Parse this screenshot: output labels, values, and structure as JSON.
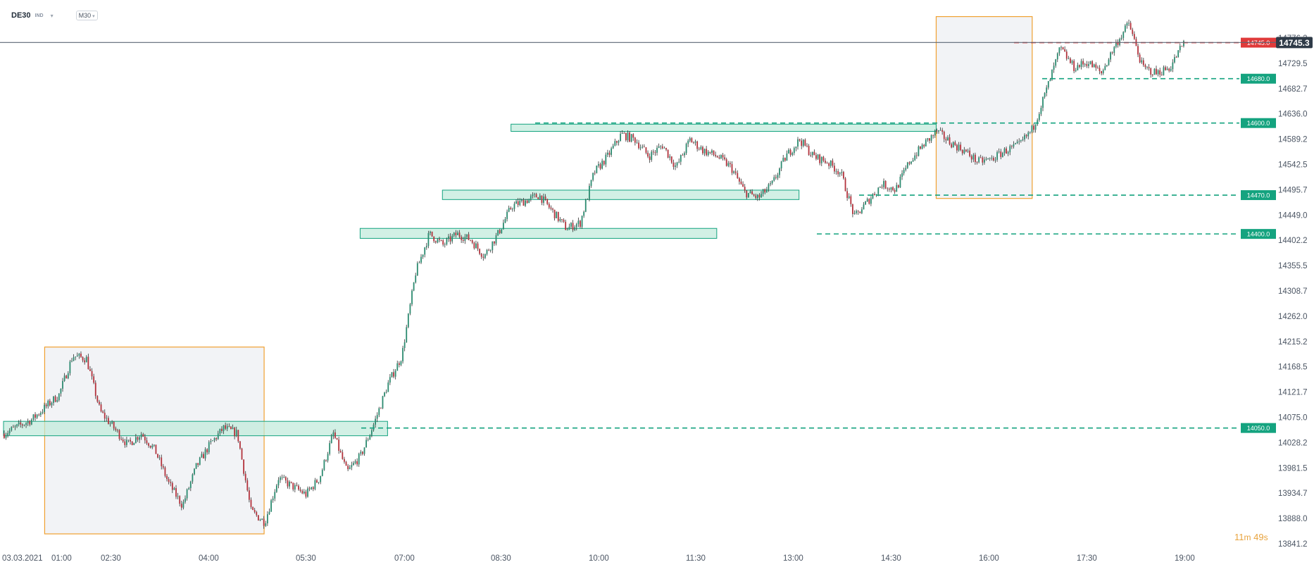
{
  "toolbar": {
    "symbol": "DE30",
    "market": "IND",
    "timeframe": "M30",
    "market_caret_icon": "chevron-down-icon",
    "timeframe_caret_icon": "chevron-down-icon"
  },
  "countdown": {
    "minutes": "11",
    "m_unit": "m",
    "seconds": "49",
    "s_unit": "s"
  },
  "colors": {
    "up_candle": "#2b8a6f",
    "down_candle": "#b3323c",
    "wick": "#2d2d2d",
    "level_green": "#14a37f",
    "level_red": "#e03a3a",
    "box_orange": "#f0a030",
    "box_fill": "#f2f3f6",
    "zone_fill": "#bfe9da",
    "axis_text": "#4b5563",
    "price_line": "#5b6675",
    "current_badge": "#2f3b48"
  },
  "chart_data": {
    "type": "candlestick",
    "y_ticks": [
      "14776.2",
      "14729.5",
      "14682.7",
      "14636.0",
      "14589.2",
      "14542.5",
      "14495.7",
      "14449.0",
      "14402.2",
      "14355.5",
      "14308.7",
      "14262.0",
      "14215.2",
      "14168.5",
      "14121.7",
      "14075.0",
      "14028.2",
      "13981.5",
      "13934.7",
      "13888.0",
      "13841.2"
    ],
    "ylim": [
      13841.2,
      14776.2
    ],
    "x_ticks": [
      "03.03.2021",
      "01:00",
      "02:30",
      "04:00",
      "05:30",
      "07:00",
      "08:30",
      "10:00",
      "11:30",
      "13:00",
      "14:30",
      "16:00",
      "17:30",
      "19:00"
    ],
    "current_price": {
      "value": 14745.3,
      "label": "14745.3"
    },
    "levels": [
      {
        "value": 14745.0,
        "label": "14745.0",
        "color": "red"
      },
      {
        "value": 14680.0,
        "label": "14680.0",
        "color": "green"
      },
      {
        "value": 14600.0,
        "label": "14600.0",
        "color": "green"
      },
      {
        "value": 14470.0,
        "label": "14470.0",
        "color": "green"
      },
      {
        "value": 14400.0,
        "label": "14400.0",
        "color": "green"
      },
      {
        "value": 14050.0,
        "label": "14050.0",
        "color": "green"
      }
    ],
    "zones": [
      {
        "price_low": 14036,
        "price_high": 14062,
        "from": "23:30",
        "to": "06:30"
      },
      {
        "price_low": 14392,
        "price_high": 14410,
        "from": "06:00",
        "to": "12:30"
      },
      {
        "price_low": 14462,
        "price_high": 14479,
        "from": "07:30",
        "to": "14:00"
      },
      {
        "price_low": 14585,
        "price_high": 14598,
        "from": "08:45",
        "to": "16:30"
      }
    ],
    "range_boxes": [
      {
        "from": "00:15",
        "to": "04:15",
        "high": 14196,
        "low": 13859
      },
      {
        "from": "16:30",
        "to": "18:15",
        "high": 14792,
        "low": 14464
      }
    ],
    "close_path": [
      [
        "23:30",
        14040
      ],
      [
        "00:00",
        14065
      ],
      [
        "00:30",
        14110
      ],
      [
        "00:45",
        14180
      ],
      [
        "01:00",
        14175
      ],
      [
        "01:15",
        14080
      ],
      [
        "01:30",
        14050
      ],
      [
        "01:45",
        14020
      ],
      [
        "02:00",
        14040
      ],
      [
        "02:15",
        14010
      ],
      [
        "02:30",
        13950
      ],
      [
        "02:45",
        13910
      ],
      [
        "03:00",
        13980
      ],
      [
        "03:15",
        14020
      ],
      [
        "03:30",
        14050
      ],
      [
        "03:45",
        14040
      ],
      [
        "04:00",
        13900
      ],
      [
        "04:15",
        13880
      ],
      [
        "04:30",
        13960
      ],
      [
        "05:00",
        13930
      ],
      [
        "05:15",
        13960
      ],
      [
        "05:30",
        14040
      ],
      [
        "05:45",
        13970
      ],
      [
        "06:00",
        14000
      ],
      [
        "06:15",
        14060
      ],
      [
        "06:30",
        14130
      ],
      [
        "06:45",
        14180
      ],
      [
        "07:00",
        14330
      ],
      [
        "07:15",
        14400
      ],
      [
        "07:30",
        14380
      ],
      [
        "07:45",
        14400
      ],
      [
        "08:00",
        14390
      ],
      [
        "08:15",
        14360
      ],
      [
        "08:30",
        14400
      ],
      [
        "08:45",
        14450
      ],
      [
        "09:00",
        14460
      ],
      [
        "09:15",
        14470
      ],
      [
        "09:30",
        14440
      ],
      [
        "09:45",
        14410
      ],
      [
        "10:00",
        14420
      ],
      [
        "10:15",
        14510
      ],
      [
        "10:30",
        14540
      ],
      [
        "10:45",
        14580
      ],
      [
        "11:00",
        14570
      ],
      [
        "11:15",
        14540
      ],
      [
        "11:30",
        14560
      ],
      [
        "11:45",
        14520
      ],
      [
        "12:00",
        14570
      ],
      [
        "12:15",
        14550
      ],
      [
        "12:30",
        14540
      ],
      [
        "12:45",
        14520
      ],
      [
        "13:00",
        14475
      ],
      [
        "13:15",
        14465
      ],
      [
        "13:30",
        14490
      ],
      [
        "13:45",
        14540
      ],
      [
        "14:00",
        14570
      ],
      [
        "14:15",
        14540
      ],
      [
        "14:30",
        14530
      ],
      [
        "14:45",
        14510
      ],
      [
        "15:00",
        14430
      ],
      [
        "15:15",
        14460
      ],
      [
        "15:30",
        14490
      ],
      [
        "15:45",
        14480
      ],
      [
        "16:00",
        14530
      ],
      [
        "16:15",
        14560
      ],
      [
        "16:30",
        14585
      ],
      [
        "16:45",
        14565
      ],
      [
        "17:00",
        14550
      ],
      [
        "17:15",
        14530
      ],
      [
        "17:30",
        14535
      ],
      [
        "17:45",
        14550
      ],
      [
        "18:00",
        14560
      ],
      [
        "18:15",
        14590
      ],
      [
        "18:30",
        14660
      ],
      [
        "18:45",
        14735
      ],
      [
        "19:00",
        14700
      ],
      [
        "19:15",
        14710
      ],
      [
        "19:30",
        14690
      ],
      [
        "19:45",
        14740
      ],
      [
        "20:00",
        14780
      ],
      [
        "20:15",
        14700
      ],
      [
        "20:30",
        14690
      ],
      [
        "20:45",
        14700
      ],
      [
        "21:00",
        14745
      ]
    ]
  }
}
